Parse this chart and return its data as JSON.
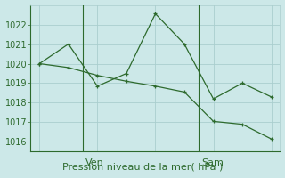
{
  "line1_x": [
    0,
    1,
    2,
    3,
    4,
    5,
    6,
    7,
    8
  ],
  "line1_y": [
    1020.0,
    1021.0,
    1018.85,
    1019.5,
    1022.55,
    1021.0,
    1018.2,
    1019.0,
    1018.3
  ],
  "line2_x": [
    0,
    1,
    2,
    3,
    4,
    5,
    6,
    7,
    8
  ],
  "line2_y": [
    1020.0,
    1019.8,
    1019.4,
    1019.1,
    1018.85,
    1018.55,
    1017.05,
    1016.9,
    1016.15
  ],
  "color": "#2d6a2d",
  "bg_color": "#cce8e8",
  "grid_color": "#aacece",
  "ylim": [
    1015.5,
    1023.0
  ],
  "yticks": [
    1016,
    1017,
    1018,
    1019,
    1020,
    1021,
    1022
  ],
  "xlim": [
    -0.3,
    8.3
  ],
  "ven_x": 1.5,
  "sam_x": 5.5,
  "xlabel": "Pression niveau de la mer( hPa )",
  "xlabel_fontsize": 8,
  "tick_label_fontsize": 7,
  "day_label_fontsize": 8
}
